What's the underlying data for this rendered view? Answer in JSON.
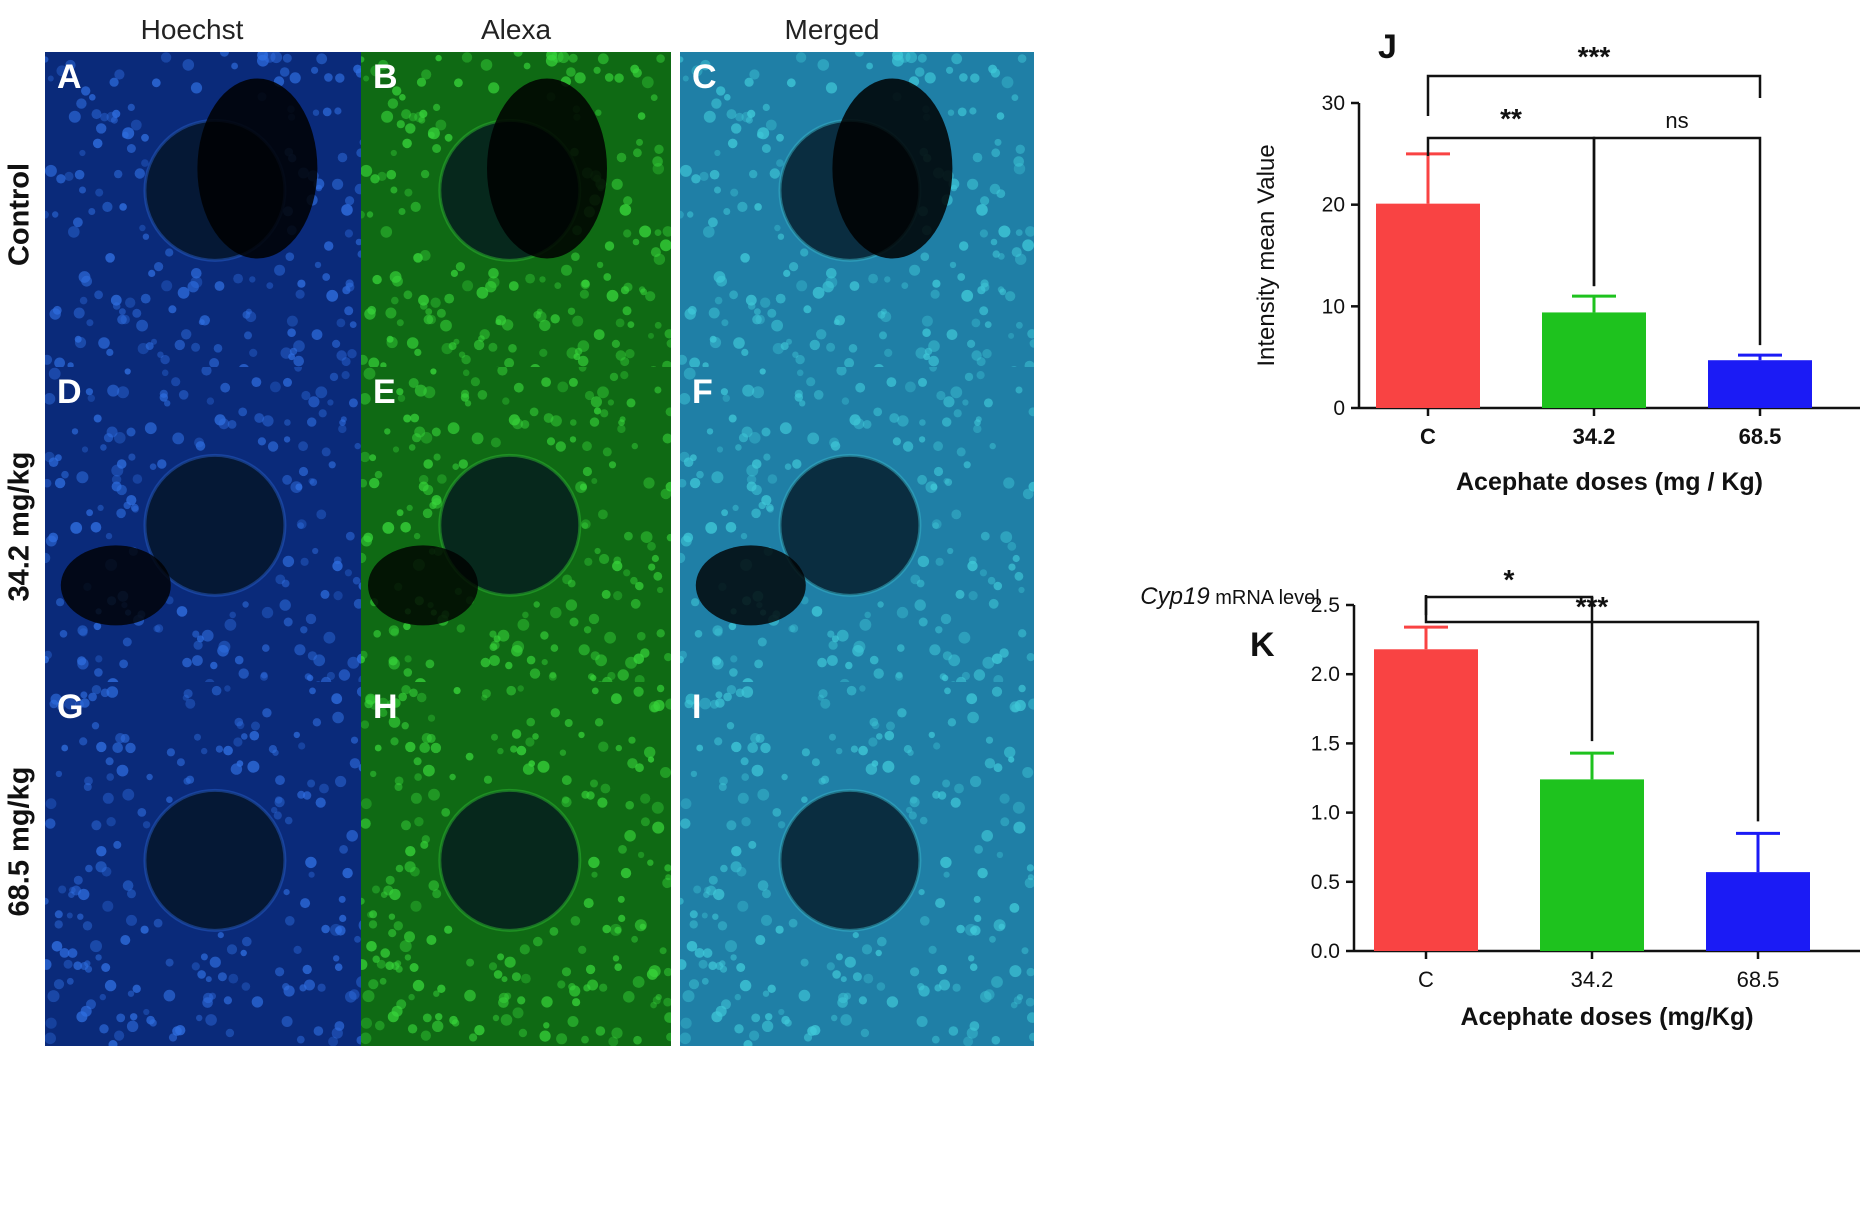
{
  "columns": [
    "Hoechst",
    "Alexa",
    "Merged"
  ],
  "rows": [
    "Control",
    "34.2 mg/kg",
    "68.5 mg/kg"
  ],
  "panel_letters": [
    "A",
    "B",
    "C",
    "D",
    "E",
    "F",
    "G",
    "H",
    "I"
  ],
  "colors": {
    "hoechst": "#0a2a7a",
    "alexa": "#0f6a14",
    "merged": "#1f7fa6",
    "control": "#f94343",
    "dose1": "#1ec21e",
    "dose2": "#1b1bf5"
  },
  "chart_data": [
    {
      "panel": "J",
      "type": "bar",
      "categories": [
        "C",
        "34.2",
        "68.5"
      ],
      "values": [
        20.1,
        9.4,
        4.7
      ],
      "errors": [
        4.9,
        1.6,
        0.5
      ],
      "xlabel": "Acephate doses (mg / Kg)",
      "ylabel": "Intensity mean Value",
      "ylim": [
        0,
        30
      ],
      "yticks": [
        "0",
        "10",
        "20",
        "30"
      ],
      "significance": [
        {
          "from": "C",
          "to": "34.2",
          "label": "**"
        },
        {
          "from": "34.2",
          "to": "68.5",
          "label": "ns"
        },
        {
          "from": "C",
          "to": "68.5",
          "label": "***"
        }
      ]
    },
    {
      "panel": "K",
      "type": "bar",
      "categories": [
        "C",
        "34.2",
        "68.5"
      ],
      "values": [
        2.18,
        1.24,
        0.57
      ],
      "errors": [
        0.16,
        0.19,
        0.28
      ],
      "xlabel": "Acephate doses (mg/Kg)",
      "ylabel_italic": "Cyp19",
      "ylabel_rest": " mRNA level",
      "ylim": [
        0,
        2.5
      ],
      "yticks": [
        "0.0",
        "0.5",
        "1.0",
        "1.5",
        "2.0",
        "2.5"
      ],
      "significance": [
        {
          "from": "C",
          "to": "34.2",
          "label": "*"
        },
        {
          "from": "C",
          "to": "68.5",
          "label": "***"
        }
      ]
    }
  ]
}
